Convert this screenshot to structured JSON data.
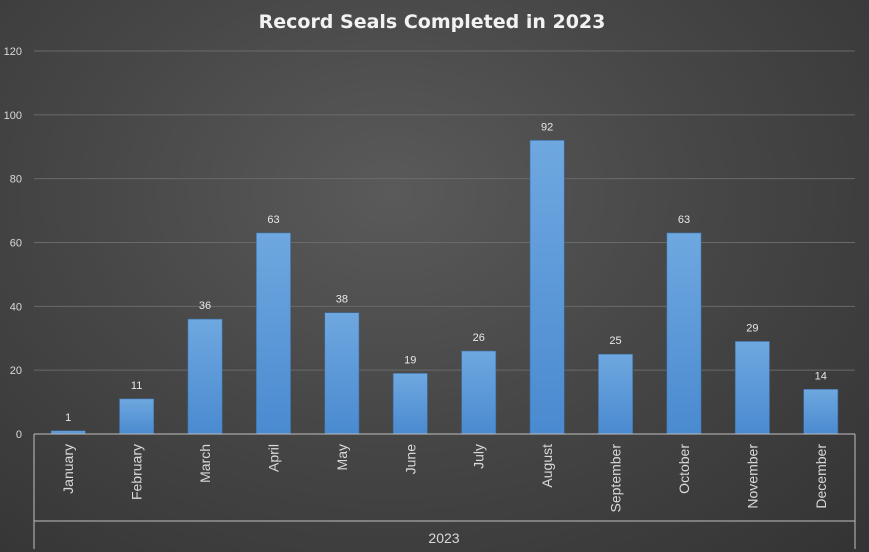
{
  "chart_data": {
    "type": "bar",
    "title": "Record Seals Completed in 2023",
    "categories": [
      "January",
      "February",
      "March",
      "April",
      "May",
      "June",
      "July",
      "August",
      "September",
      "October",
      "November",
      "December"
    ],
    "group_label": "2023",
    "values": [
      1,
      11,
      36,
      63,
      38,
      19,
      26,
      92,
      25,
      63,
      29,
      14
    ],
    "ylim": [
      0,
      120
    ],
    "yticks": [
      0,
      20,
      40,
      60,
      80,
      100,
      120
    ],
    "grid": true,
    "legend": "none",
    "data_labels": true,
    "bar_color": "#5b9bd5"
  }
}
